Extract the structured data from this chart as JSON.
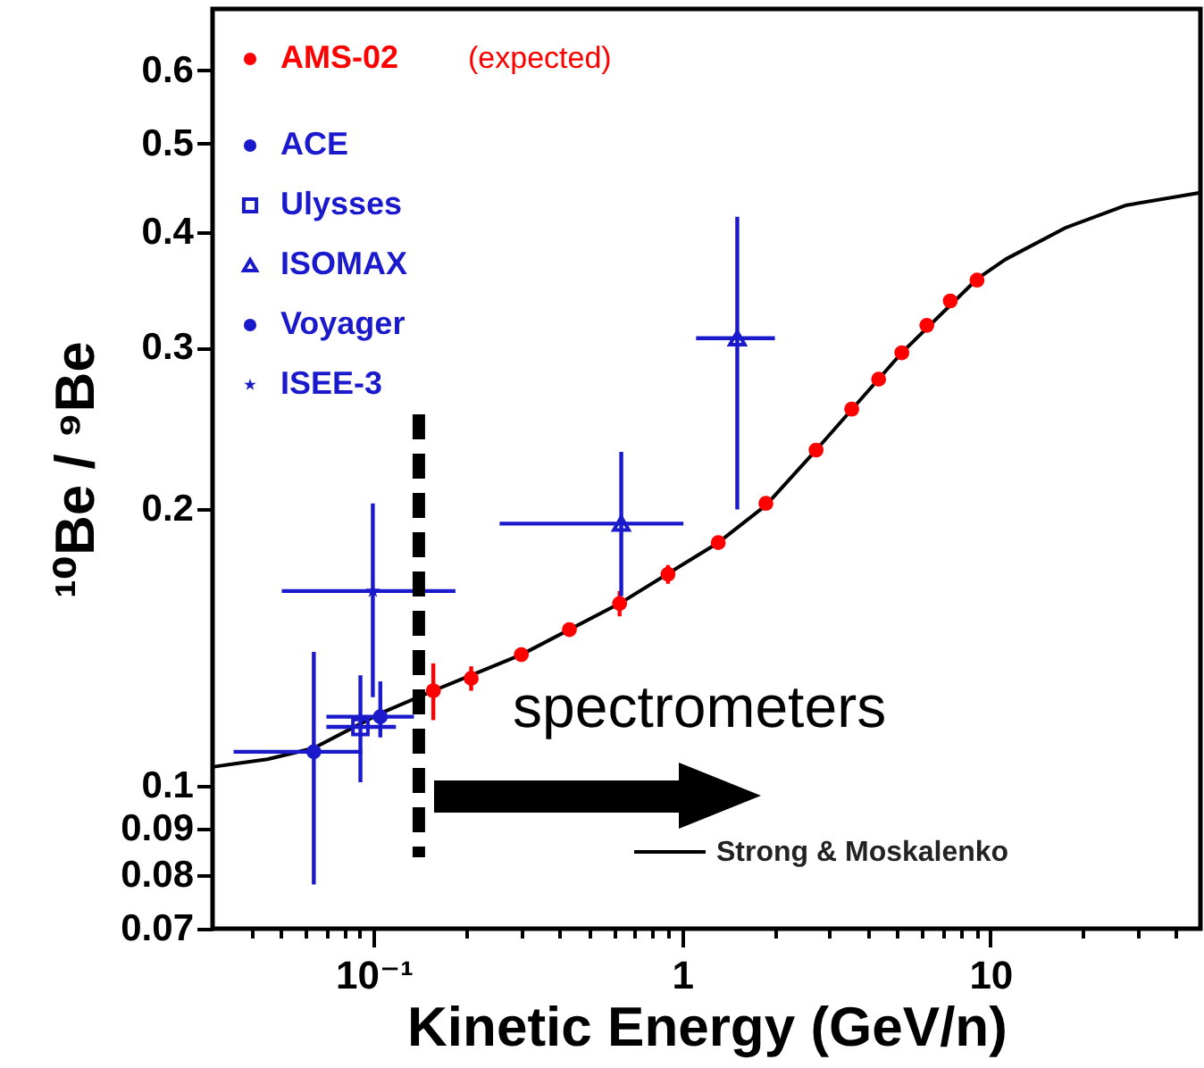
{
  "chart_data": {
    "type": "scatter",
    "xlabel": "Kinetic Energy (GeV/n)",
    "ylabel": "¹⁰Be / ⁹Be",
    "log": "xy",
    "xlim": [
      0.03,
      48
    ],
    "ylim": [
      0.07,
      0.7
    ],
    "xticks": [
      {
        "value": 0.04,
        "label": null
      },
      {
        "value": 0.05,
        "label": null
      },
      {
        "value": 0.06,
        "label": null
      },
      {
        "value": 0.07,
        "label": null
      },
      {
        "value": 0.08,
        "label": null
      },
      {
        "value": 0.09,
        "label": null
      },
      {
        "value": 0.1,
        "label": "10⁻¹"
      },
      {
        "value": 0.2,
        "label": null
      },
      {
        "value": 0.3,
        "label": null
      },
      {
        "value": 0.4,
        "label": null
      },
      {
        "value": 0.5,
        "label": null
      },
      {
        "value": 0.6,
        "label": null
      },
      {
        "value": 0.7,
        "label": null
      },
      {
        "value": 0.8,
        "label": null
      },
      {
        "value": 0.9,
        "label": null
      },
      {
        "value": 1,
        "label": "1"
      },
      {
        "value": 2,
        "label": null
      },
      {
        "value": 3,
        "label": null
      },
      {
        "value": 4,
        "label": null
      },
      {
        "value": 5,
        "label": null
      },
      {
        "value": 6,
        "label": null
      },
      {
        "value": 7,
        "label": null
      },
      {
        "value": 8,
        "label": null
      },
      {
        "value": 9,
        "label": null
      },
      {
        "value": 10,
        "label": "10"
      },
      {
        "value": 20,
        "label": null
      },
      {
        "value": 30,
        "label": null
      },
      {
        "value": 40,
        "label": null
      }
    ],
    "yticks": [
      0.07,
      0.08,
      0.09,
      0.1,
      0.2,
      0.3,
      0.4,
      0.5,
      0.6
    ],
    "grid": false,
    "legend": "top left",
    "series": [
      {
        "name": "AMS-02",
        "color": "#ff0000",
        "marker": "circle",
        "x": [
          0.156,
          0.207,
          0.301,
          0.431,
          0.627,
          0.9,
          1.31,
          1.87,
          2.72,
          3.55,
          4.34,
          5.16,
          6.22,
          7.41,
          9.05
        ],
        "values": [
          0.127,
          0.131,
          0.139,
          0.148,
          0.158,
          0.17,
          0.184,
          0.203,
          0.232,
          0.257,
          0.277,
          0.296,
          0.317,
          0.337,
          0.355
        ],
        "errors": [
          0.009,
          0.004,
          null,
          null,
          0.005,
          0.004,
          null,
          null,
          null,
          null,
          null,
          null,
          null,
          null,
          null
        ]
      },
      {
        "name": "ACE",
        "color": "#1a1acc",
        "marker": "circle",
        "x": [
          0.105
        ],
        "values": [
          0.119
        ],
        "errors": [
          [
            0.113,
            0.13
          ]
        ],
        "xerrors": [
          [
            0.0702,
            0.135
          ]
        ]
      },
      {
        "name": "Ulysses",
        "color": "#1a1acc",
        "marker": "square",
        "x": [
          0.0905
        ],
        "values": [
          0.116
        ],
        "errors": [
          [
            0.101,
            0.132
          ]
        ],
        "xerrors": [
          [
            0.0702,
            0.118
          ]
        ]
      },
      {
        "name": "ISOMAX",
        "color": "#1a1acc",
        "marker": "triangle",
        "x": [
          0.635,
          1.51
        ],
        "values": [
          0.193,
          0.307
        ],
        "errors": [
          [
            0.161,
            0.231
          ],
          [
            0.2,
            0.416
          ]
        ],
        "xerrors": [
          [
            0.256,
            1.01
          ],
          [
            1.11,
            2.0
          ]
        ]
      },
      {
        "name": "Voyager",
        "color": "#1a1acc",
        "marker": "circle",
        "x": [
          0.0639
        ],
        "values": [
          0.109
        ],
        "errors": [
          [
            0.0782,
            0.14
          ]
        ],
        "xerrors": [
          [
            0.0351,
            0.0917
          ]
        ]
      },
      {
        "name": "ISEE-3",
        "color": "#1a1acc",
        "marker": "star",
        "x": [
          0.0993
        ],
        "values": [
          0.163
        ],
        "errors": [
          [
            0.125,
            0.203
          ]
        ],
        "xerrors": [
          [
            0.0503,
            0.184
          ]
        ]
      },
      {
        "name": "Strong & Moskalenko",
        "color": "#000000",
        "type": "line",
        "line_style": "solid",
        "x": [
          0.0303,
          0.0452,
          0.0639,
          0.105,
          0.156,
          0.301,
          0.627,
          1.31,
          1.87,
          2.72,
          5.16,
          9.05,
          11.2,
          17.6,
          27.4,
          48
        ],
        "values": [
          0.105,
          0.107,
          0.11,
          0.12,
          0.127,
          0.139,
          0.158,
          0.184,
          0.202,
          0.232,
          0.296,
          0.356,
          0.374,
          0.405,
          0.428,
          0.442
        ]
      }
    ],
    "ref_lines": [
      {
        "axis": "x",
        "value": 0.14,
        "color": "#000000",
        "line_style": "dashed"
      }
    ],
    "annotations": [
      "(expected)",
      "spectrometers"
    ]
  }
}
